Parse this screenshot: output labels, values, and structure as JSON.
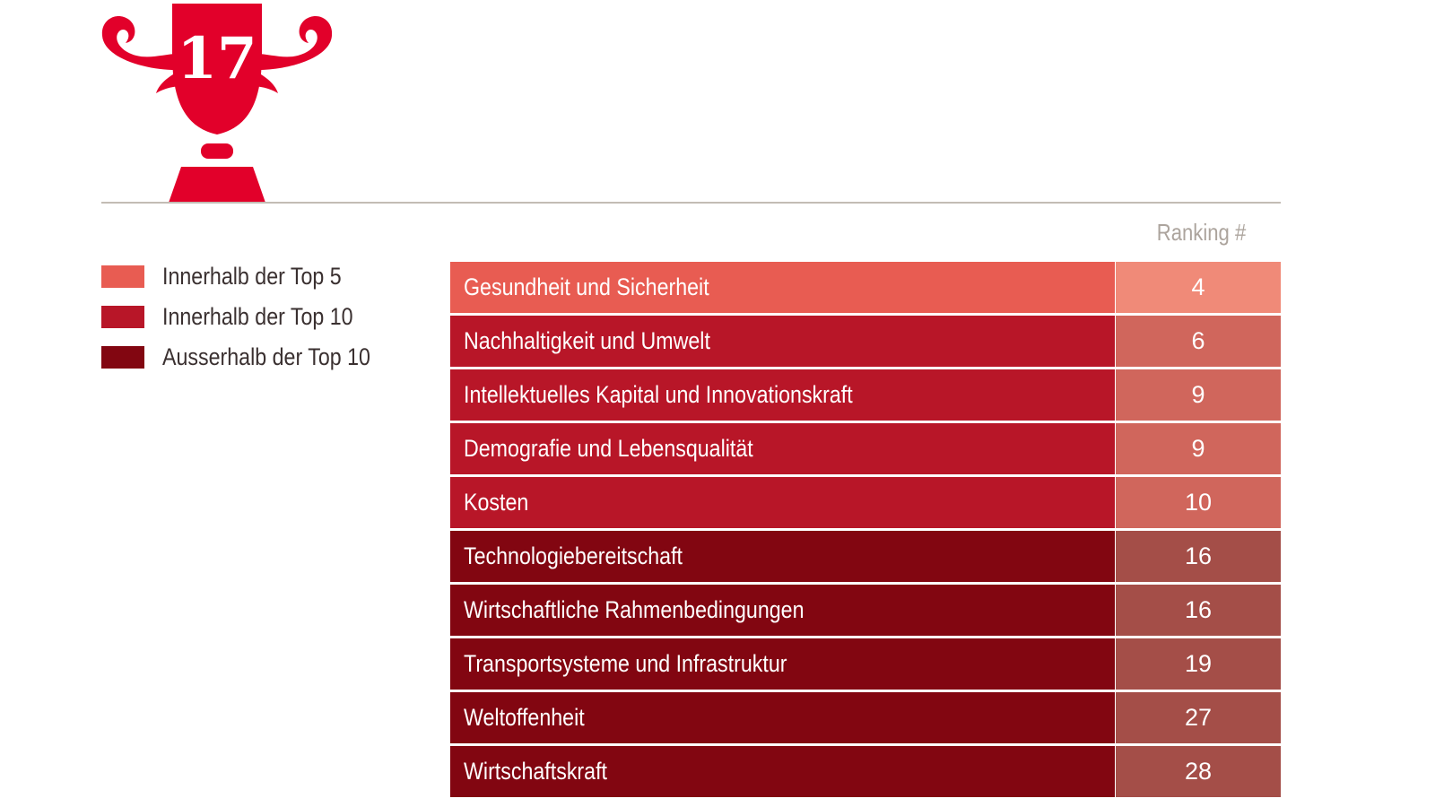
{
  "badge": {
    "rank": "17",
    "icon": "trophy-icon",
    "color": "#e2002a"
  },
  "legend": [
    {
      "label": "Innerhalb der Top 5",
      "color": "#e85c52"
    },
    {
      "label": "Innerhalb der Top 10",
      "color": "#b81628"
    },
    {
      "label": "Ausserhalb der Top 10",
      "color": "#820611"
    }
  ],
  "chart_data": {
    "type": "table",
    "column_header": "Ranking #",
    "rows": [
      {
        "category": "Gesundheit und Sicherheit",
        "rank": 4,
        "tier": 0
      },
      {
        "category": "Nachhaltigkeit und Umwelt",
        "rank": 6,
        "tier": 1
      },
      {
        "category": "Intellektuelles Kapital und Innovationskraft",
        "rank": 9,
        "tier": 1
      },
      {
        "category": "Demografie und Lebensqualität",
        "rank": 9,
        "tier": 1
      },
      {
        "category": "Kosten",
        "rank": 10,
        "tier": 1
      },
      {
        "category": "Technologiebereitschaft",
        "rank": 16,
        "tier": 2
      },
      {
        "category": "Wirtschaftliche Rahmenbedingungen",
        "rank": 16,
        "tier": 2
      },
      {
        "category": "Transportsysteme und Infrastruktur",
        "rank": 19,
        "tier": 2
      },
      {
        "category": "Weltoffenheit",
        "rank": 27,
        "tier": 2
      },
      {
        "category": "Wirtschaftskraft",
        "rank": 28,
        "tier": 2
      }
    ],
    "tier_colors": [
      {
        "category": "#e85c52",
        "rank": "#f08a78"
      },
      {
        "category": "#b81628",
        "rank": "#d0665c"
      },
      {
        "category": "#820611",
        "rank": "#a44e48"
      }
    ]
  }
}
